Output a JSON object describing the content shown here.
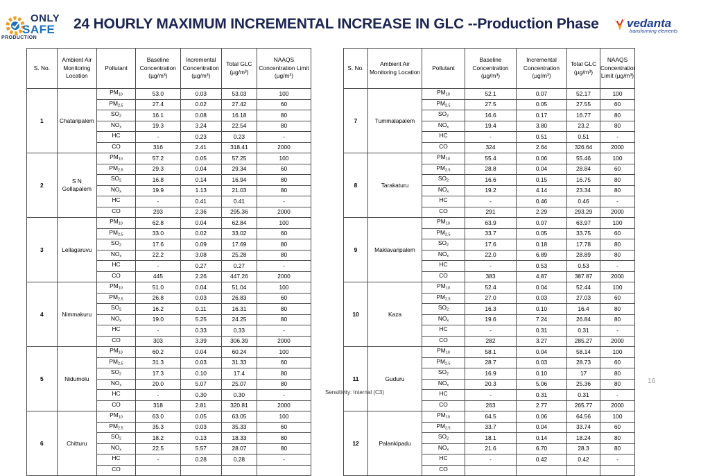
{
  "logo_left": {
    "line1": "ONLY",
    "line2": "SAFE",
    "line3": "PRODUCTION"
  },
  "title": "24 HOURLY MAXIMUM INCREMENTAL INCREASE IN GLC --Production Phase",
  "logo_right": {
    "name": "vedanta",
    "tagline": "transforming elements"
  },
  "headers_left": [
    "S. No.",
    "Ambient Air Monitoring Location",
    "Pollutant",
    "Baseline Concentration (µg/m³)",
    "Incremental Concentration (µg/m³)",
    "Total GLC (µg/m³)",
    "NAAQS Concentration Limit (µg/m³)"
  ],
  "headers_right": [
    "S. No.",
    "Ambient Air Monitoring Location",
    "Pollutant",
    "Baseline Concentration (µg/m³)",
    "Incremental Concentration (µg/m³)",
    "Total GLC (µg/m³)",
    "NAAQS Concentration Limit (µg/m³)"
  ],
  "pollutants": [
    {
      "base": "PM",
      "sub": "10"
    },
    {
      "base": "PM",
      "sub": "2.5"
    },
    {
      "base": "SO",
      "sub": "2"
    },
    {
      "base": "NO",
      "sub": "x"
    },
    {
      "base": "HC",
      "sub": ""
    },
    {
      "base": "CO",
      "sub": ""
    }
  ],
  "left_groups": [
    {
      "sno": "1",
      "location": "Chataripalem",
      "rows": [
        [
          "53.0",
          "0.03",
          "53.03",
          "100"
        ],
        [
          "27.4",
          "0.02",
          "27.42",
          "60"
        ],
        [
          "16.1",
          "0.08",
          "16.18",
          "80"
        ],
        [
          "19.3",
          "3.24",
          "22.54",
          "80"
        ],
        [
          "-",
          "0.23",
          "0.23",
          "-"
        ],
        [
          "316",
          "2.41",
          "318.41",
          "2000"
        ]
      ]
    },
    {
      "sno": "2",
      "location": "S N Gollapalem",
      "rows": [
        [
          "57.2",
          "0.05",
          "57.25",
          "100"
        ],
        [
          "29.3",
          "0.04",
          "29.34",
          "60"
        ],
        [
          "16.8",
          "0.14",
          "16.94",
          "80"
        ],
        [
          "19.9",
          "1.13",
          "21.03",
          "80"
        ],
        [
          "-",
          "0.41",
          "0.41",
          "-"
        ],
        [
          "293",
          "2.36",
          "295.36",
          "2000"
        ]
      ]
    },
    {
      "sno": "3",
      "location": "Lellagaruvu",
      "rows": [
        [
          "62.8",
          "0.04",
          "62.84",
          "100"
        ],
        [
          "33.0",
          "0.02",
          "33.02",
          "60"
        ],
        [
          "17.6",
          "0.09",
          "17.69",
          "80"
        ],
        [
          "22.2",
          "3.08",
          "25.28",
          "80"
        ],
        [
          "-",
          "0.27",
          "0.27",
          "-"
        ],
        [
          "445",
          "2.26",
          "447.26",
          "2000"
        ]
      ]
    },
    {
      "sno": "4",
      "location": "Nimmakuru",
      "rows": [
        [
          "51.0",
          "0.04",
          "51.04",
          "100"
        ],
        [
          "26.8",
          "0.03",
          "26.83",
          "60"
        ],
        [
          "16.2",
          "0.11",
          "16.31",
          "80"
        ],
        [
          "19.0",
          "5.25",
          "24.25",
          "80"
        ],
        [
          "-",
          "0.33",
          "0.33",
          "-"
        ],
        [
          "303",
          "3.39",
          "306.39",
          "2000"
        ]
      ]
    },
    {
      "sno": "5",
      "location": "Nidumolu",
      "rows": [
        [
          "60.2",
          "0.04",
          "60.24",
          "100"
        ],
        [
          "31.3",
          "0.03",
          "31.33",
          "60"
        ],
        [
          "17.3",
          "0.10",
          "17.4",
          "80"
        ],
        [
          "20.0",
          "5.07",
          "25.07",
          "80"
        ],
        [
          "-",
          "0.30",
          "0.30",
          "-"
        ],
        [
          "318",
          "2.81",
          "320.81",
          "2000"
        ]
      ]
    },
    {
      "sno": "6",
      "location": "Chitturu",
      "rows": [
        [
          "63.0",
          "0.05",
          "63.05",
          "100"
        ],
        [
          "35.3",
          "0.03",
          "35.33",
          "60"
        ],
        [
          "18.2",
          "0.13",
          "18.33",
          "80"
        ],
        [
          "22.5",
          "5.57",
          "28.07",
          "80"
        ],
        [
          "-",
          "0.28",
          "0.28",
          "-"
        ],
        [
          "",
          "",
          "",
          ""
        ]
      ]
    }
  ],
  "right_groups": [
    {
      "sno": "7",
      "location": "Tummalapalem",
      "rows": [
        [
          "52.1",
          "0.07",
          "52.17",
          "100"
        ],
        [
          "27.5",
          "0.05",
          "27.55",
          "60"
        ],
        [
          "16.6",
          "0.17",
          "16.77",
          "80"
        ],
        [
          "19.4",
          "3.80",
          "23.2",
          "80"
        ],
        [
          "-",
          "0.51",
          "0.51",
          "-"
        ],
        [
          "324",
          "2.64",
          "326.64",
          "2000"
        ]
      ]
    },
    {
      "sno": "8",
      "location": "Tarakaturu",
      "rows": [
        [
          "55.4",
          "0.06",
          "55.46",
          "100"
        ],
        [
          "28.8",
          "0.04",
          "28.84",
          "60"
        ],
        [
          "16.6",
          "0.15",
          "16.75",
          "80"
        ],
        [
          "19.2",
          "4.14",
          "23.34",
          "80"
        ],
        [
          "-",
          "0.46",
          "0.46",
          "-"
        ],
        [
          "291",
          "2.29",
          "293.29",
          "2000"
        ]
      ]
    },
    {
      "sno": "9",
      "location": "Maklavaripalem",
      "rows": [
        [
          "63.9",
          "0.07",
          "63.97",
          "100"
        ],
        [
          "33.7",
          "0.05",
          "33.75",
          "60"
        ],
        [
          "17.6",
          "0.18",
          "17.78",
          "80"
        ],
        [
          "22.0",
          "6.89",
          "28.89",
          "80"
        ],
        [
          "-",
          "0.53",
          "0.53",
          "-"
        ],
        [
          "383",
          "4.87",
          "387.87",
          "2000"
        ]
      ]
    },
    {
      "sno": "10",
      "location": "Kaza",
      "rows": [
        [
          "52.4",
          "0.04",
          "52.44",
          "100"
        ],
        [
          "27.0",
          "0.03",
          "27.03",
          "60"
        ],
        [
          "16.3",
          "0.10",
          "16.4",
          "80"
        ],
        [
          "19.6",
          "7.24",
          "26.84",
          "80"
        ],
        [
          "-",
          "0.31",
          "0.31",
          "-"
        ],
        [
          "282",
          "3.27",
          "285.27",
          "2000"
        ]
      ]
    },
    {
      "sno": "11",
      "location": "Guduru",
      "rows": [
        [
          "58.1",
          "0.04",
          "58.14",
          "100"
        ],
        [
          "28.7",
          "0.03",
          "28.73",
          "60"
        ],
        [
          "16.9",
          "0.10",
          "17",
          "80"
        ],
        [
          "20.3",
          "5.06",
          "25.36",
          "80"
        ],
        [
          "-",
          "0.31",
          "0.31",
          "-"
        ],
        [
          "263",
          "2.77",
          "265.77",
          "2000"
        ]
      ]
    },
    {
      "sno": "12",
      "location": "Palankipadu",
      "rows": [
        [
          "64.5",
          "0.06",
          "64.56",
          "100"
        ],
        [
          "33.7",
          "0.04",
          "33.74",
          "60"
        ],
        [
          "18.1",
          "0.14",
          "18.24",
          "80"
        ],
        [
          "21.6",
          "6.70",
          "28.3",
          "80"
        ],
        [
          "-",
          "0.42",
          "0.42",
          "-"
        ],
        [
          "",
          "",
          "",
          ""
        ]
      ]
    }
  ],
  "page_number": "16",
  "sensitivity": "Sensitivity: Internal (C3)",
  "colors": {
    "title": "#1b2452",
    "vedanta_blue": "#1c3f94",
    "safe_blue": "#1b6fb8",
    "gear_orange": "#f39a1e"
  }
}
